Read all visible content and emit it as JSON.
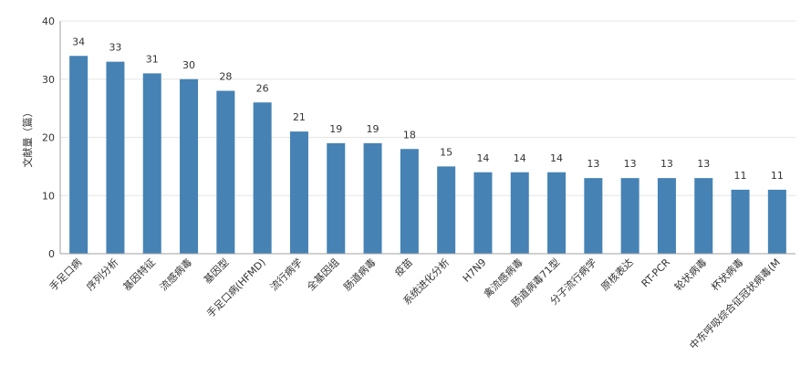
{
  "chart_data": {
    "type": "bar",
    "ylabel": "文献量（篇）",
    "xlabel": "",
    "ylim": [
      0,
      40
    ],
    "yticks": [
      0,
      10,
      20,
      30,
      40
    ],
    "categories": [
      "手足口病",
      "序列分析",
      "基因特征",
      "流感病毒",
      "基因型",
      "手足口病(HFMD)",
      "流行病学",
      "全基因组",
      "肠道病毒",
      "疫苗",
      "系统进化分析",
      "H7N9",
      "禽流感病毒",
      "肠道病毒71型",
      "分子流行病学",
      "原核表达",
      "RT-PCR",
      "轮状病毒",
      "杯状病毒",
      "中东呼吸综合征冠状病毒(M"
    ],
    "values": [
      34,
      33,
      31,
      30,
      28,
      26,
      21,
      19,
      19,
      18,
      15,
      14,
      14,
      14,
      13,
      13,
      13,
      13,
      11,
      11
    ],
    "bar_color": "#4682b4",
    "grid": true,
    "grid_color": "#e6e6e6",
    "axis_color": "#a0a0a0"
  }
}
